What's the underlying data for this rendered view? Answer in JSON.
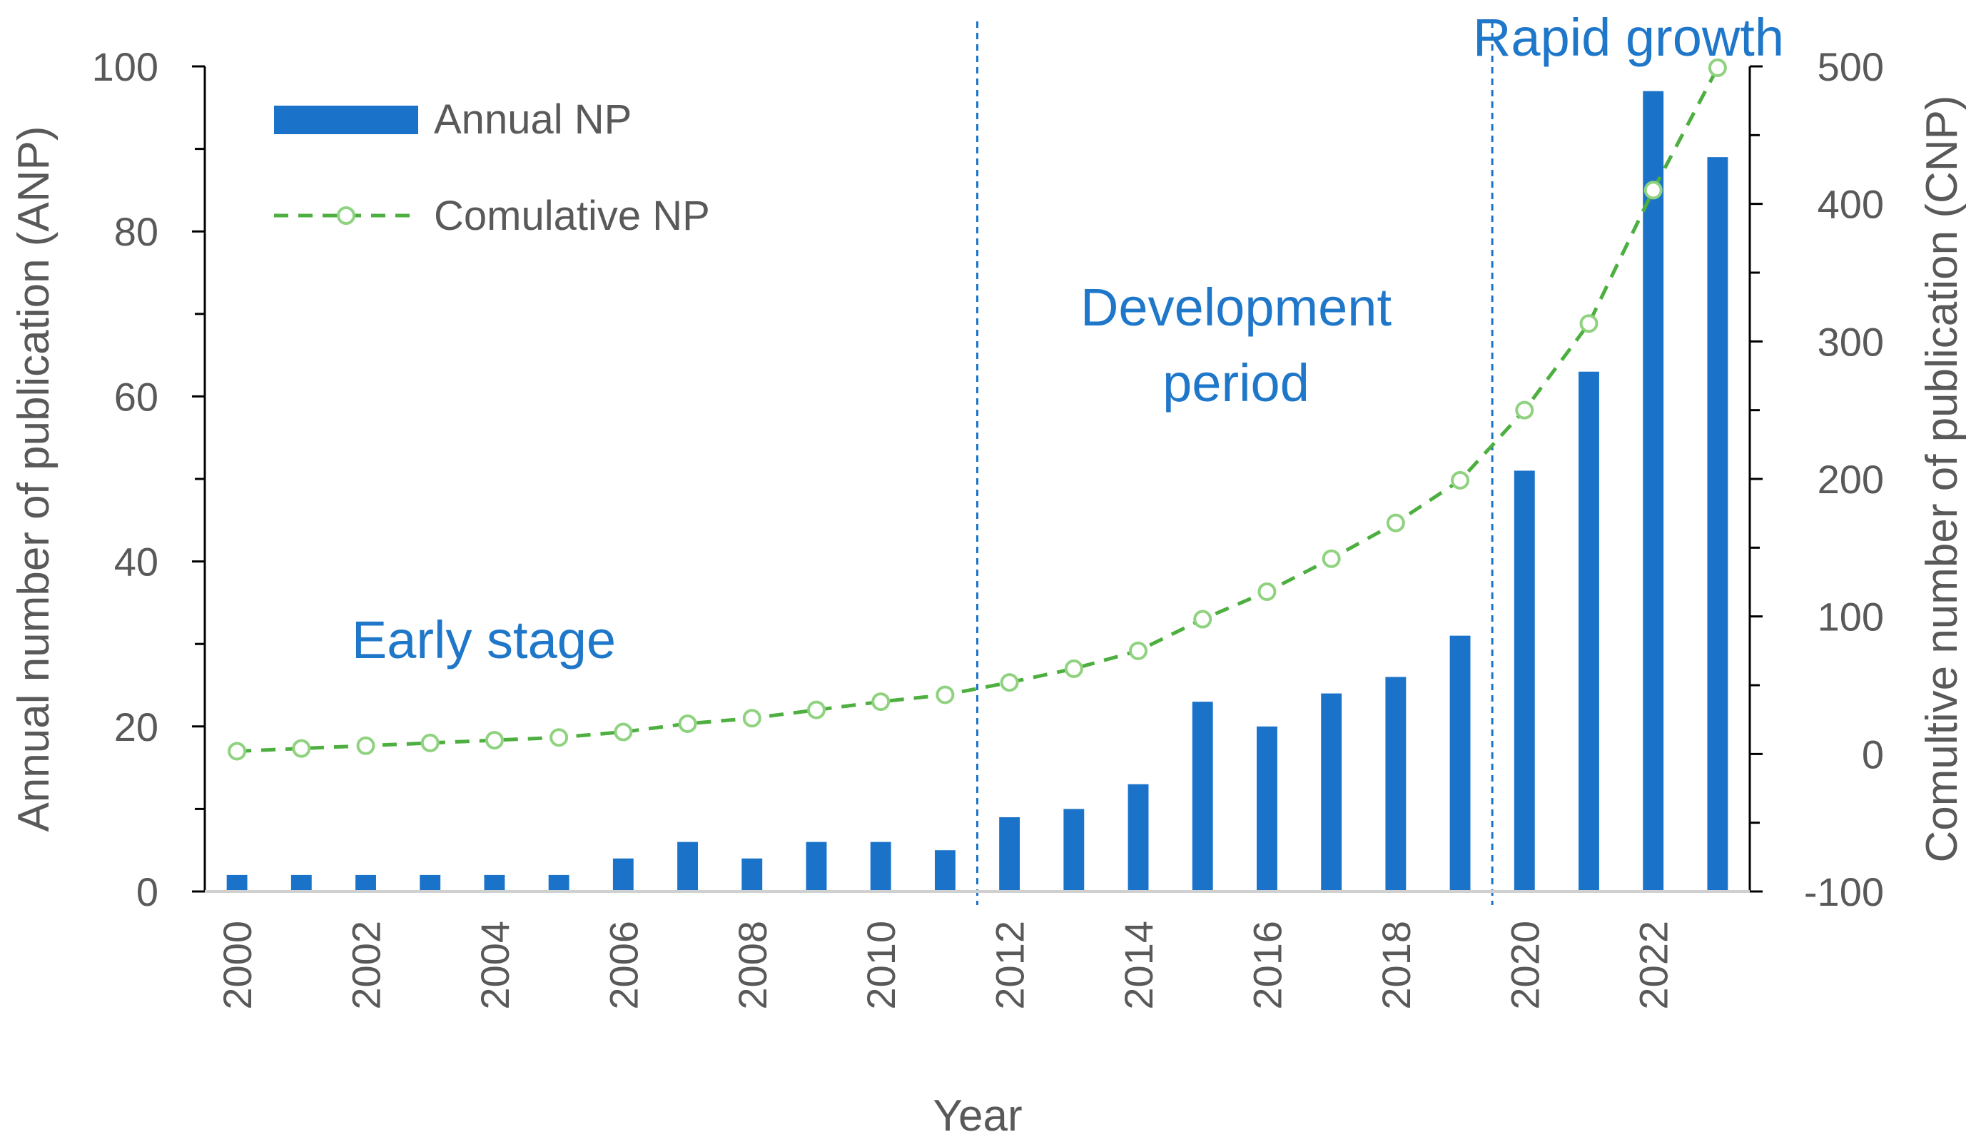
{
  "chart_data": {
    "type": "bar",
    "xlabel": "Year",
    "x_tick_labels": [
      "2000",
      "2002",
      "2004",
      "2006",
      "2008",
      "2010",
      "2012",
      "2014",
      "2016",
      "2018",
      "2020",
      "2022"
    ],
    "categories": [
      "2000",
      "2001",
      "2002",
      "2003",
      "2004",
      "2005",
      "2006",
      "2007",
      "2008",
      "2009",
      "2010",
      "2011",
      "2012",
      "2013",
      "2014",
      "2015",
      "2016",
      "2017",
      "2018",
      "2019",
      "2020",
      "2021",
      "2022",
      "2023"
    ],
    "series": [
      {
        "name": "Annual NP",
        "type": "bar",
        "axis": "left",
        "color": "#1a73c8",
        "values": [
          2,
          2,
          2,
          2,
          2,
          2,
          4,
          6,
          4,
          6,
          6,
          5,
          9,
          10,
          13,
          23,
          20,
          24,
          26,
          31,
          51,
          63,
          97,
          89
        ]
      },
      {
        "name": "Comulative NP",
        "type": "line",
        "axis": "right",
        "line_style": "dashed",
        "marker": "open-circle",
        "color": "#4caf3f",
        "marker_color": "#8fd27f",
        "values": [
          2,
          4,
          6,
          8,
          10,
          12,
          16,
          22,
          26,
          32,
          38,
          43,
          52,
          62,
          75,
          98,
          118,
          142,
          168,
          199,
          250,
          313,
          410,
          499
        ]
      }
    ],
    "y_left": {
      "label": "Annual number of publication (ANP)",
      "ylim": [
        0,
        100
      ],
      "ticks": [
        0,
        20,
        40,
        60,
        80,
        100
      ]
    },
    "y_right": {
      "label": "Comultive number of publication (CNP)",
      "ylim": [
        -100,
        500
      ],
      "ticks": [
        -100,
        0,
        100,
        200,
        300,
        400,
        500
      ]
    },
    "legend": {
      "placement": "top-left"
    },
    "grid": false,
    "phase_dividers": [
      {
        "between": [
          "2011",
          "2012"
        ],
        "style": "dotted",
        "color": "#1a73c8"
      },
      {
        "between": [
          "2019",
          "2020"
        ],
        "style": "dotted",
        "color": "#1a73c8"
      }
    ],
    "annotations": [
      {
        "lines": [
          "Early stage"
        ]
      },
      {
        "lines": [
          "Development",
          "period"
        ]
      },
      {
        "lines": [
          "Rapid growth"
        ]
      }
    ]
  }
}
